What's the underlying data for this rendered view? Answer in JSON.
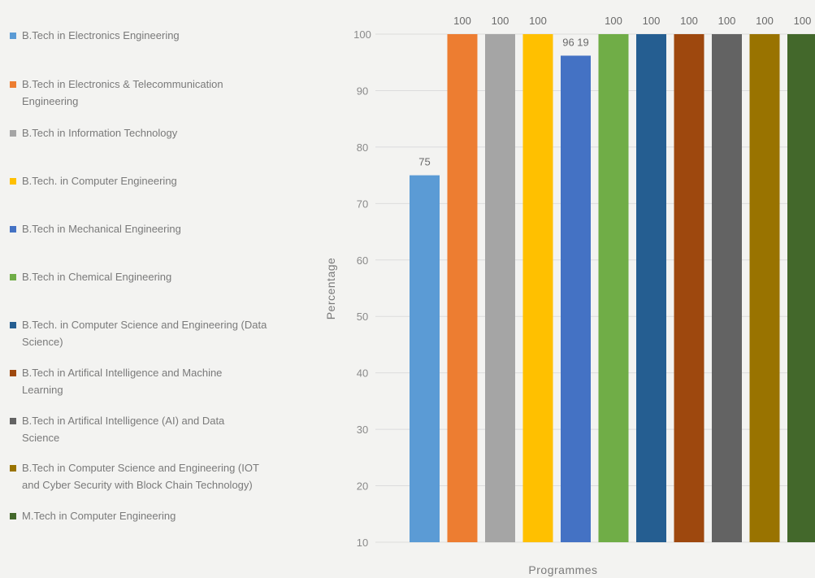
{
  "chart_data": {
    "type": "bar",
    "title": "",
    "xlabel": "Programmes",
    "ylabel": "Percentage",
    "ylim": [
      10,
      100
    ],
    "yticks": [
      10,
      20,
      30,
      40,
      50,
      60,
      70,
      80,
      90,
      100
    ],
    "grid": true,
    "legend_position": "left",
    "categories": [
      "B.Tech in Electronics Engineering",
      "B.Tech in Electronics & Telecommunication Engineering",
      "B.Tech in Information Technology",
      "B.Tech. in Computer Engineering",
      "B.Tech in Mechanical Engineering",
      "B.Tech in Chemical Engineering",
      "B.Tech. in Computer Science and Engineering (Data Science)",
      "B.Tech in Artifical Intelligence and Machine Learning",
      "B.Tech in Artifical Intelligence (AI) and Data Science",
      "B.Tech in Computer Science and Engineering (IOT and Cyber Security with Block Chain Technology)",
      "M.Tech in Computer Engineering"
    ],
    "legend_lines": [
      [
        "B.Tech in Electronics Engineering"
      ],
      [
        "B.Tech in Electronics & Telecommunication",
        "Engineering"
      ],
      [
        "B.Tech in Information Technology"
      ],
      [
        "B.Tech. in Computer Engineering"
      ],
      [
        "B.Tech in Mechanical Engineering"
      ],
      [
        "B.Tech in Chemical Engineering"
      ],
      [
        "B.Tech. in Computer Science and Engineering (Data",
        "Science)"
      ],
      [
        "B.Tech in Artifical Intelligence and Machine",
        "Learning"
      ],
      [
        "B.Tech in Artifical Intelligence (AI) and Data",
        "Science"
      ],
      [
        "B.Tech in Computer Science and Engineering (IOT",
        "and Cyber Security with Block Chain Technology)"
      ],
      [
        "M.Tech in Computer Engineering"
      ]
    ],
    "values": [
      75,
      100,
      100,
      100,
      96.19,
      100,
      100,
      100,
      100,
      100,
      100
    ],
    "data_labels": [
      "75",
      "100",
      "100",
      "100",
      "96 19",
      "100",
      "100",
      "100",
      "100",
      "100",
      "100"
    ],
    "colors": [
      "#5b9bd5",
      "#ed7d31",
      "#a5a5a5",
      "#ffc000",
      "#4472c4",
      "#70ad47",
      "#255e91",
      "#9e480e",
      "#636363",
      "#997300",
      "#43682b"
    ]
  }
}
